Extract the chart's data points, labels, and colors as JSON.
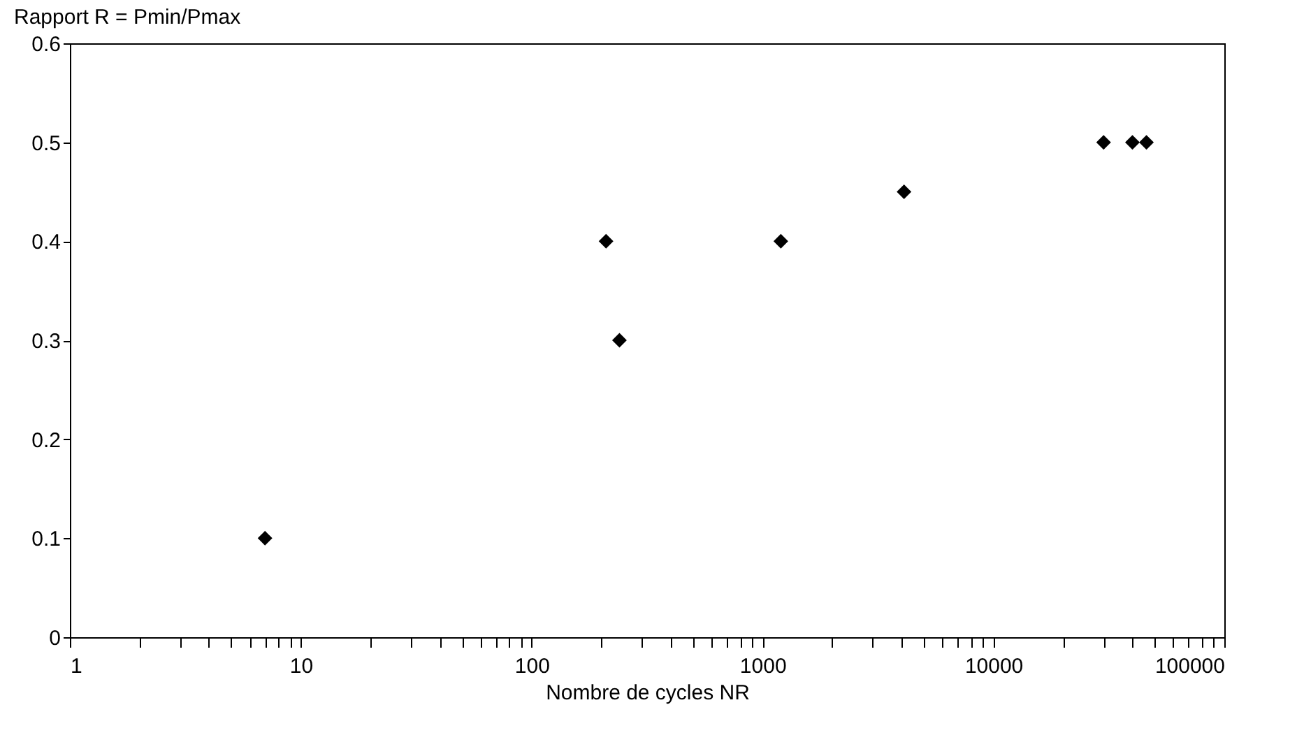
{
  "chart_data": {
    "type": "scatter",
    "ylabel": "Rapport R = Pmin/Pmax",
    "xlabel": "Nombre de cycles NR",
    "x": [
      7,
      210,
      240,
      1200,
      4100,
      30000,
      40000,
      46000
    ],
    "values": [
      0.1,
      0.4,
      0.3,
      0.4,
      0.45,
      0.5,
      0.5,
      0.5
    ],
    "color": "#000000",
    "marker": "diamond",
    "log": "x",
    "grid": false,
    "xlim": [
      1,
      100000
    ],
    "xticks": [
      1,
      {
        "value": 2,
        "label": null
      },
      {
        "value": 3,
        "label": null
      },
      {
        "value": 4,
        "label": null
      },
      {
        "value": 5,
        "label": null
      },
      {
        "value": 6,
        "label": null
      },
      {
        "value": 7,
        "label": null
      },
      {
        "value": 8,
        "label": null
      },
      {
        "value": 9,
        "label": null
      },
      10,
      {
        "value": 20,
        "label": null
      },
      {
        "value": 30,
        "label": null
      },
      {
        "value": 40,
        "label": null
      },
      {
        "value": 50,
        "label": null
      },
      {
        "value": 60,
        "label": null
      },
      {
        "value": 70,
        "label": null
      },
      {
        "value": 80,
        "label": null
      },
      {
        "value": 90,
        "label": null
      },
      100,
      {
        "value": 200,
        "label": null
      },
      {
        "value": 300,
        "label": null
      },
      {
        "value": 400,
        "label": null
      },
      {
        "value": 500,
        "label": null
      },
      {
        "value": 600,
        "label": null
      },
      {
        "value": 700,
        "label": null
      },
      {
        "value": 800,
        "label": null
      },
      {
        "value": 900,
        "label": null
      },
      1000,
      {
        "value": 2000,
        "label": null
      },
      {
        "value": 3000,
        "label": null
      },
      {
        "value": 4000,
        "label": null
      },
      {
        "value": 5000,
        "label": null
      },
      {
        "value": 6000,
        "label": null
      },
      {
        "value": 7000,
        "label": null
      },
      {
        "value": 8000,
        "label": null
      },
      {
        "value": 9000,
        "label": null
      },
      10000,
      {
        "value": 20000,
        "label": null
      },
      {
        "value": 30000,
        "label": null
      },
      {
        "value": 40000,
        "label": null
      },
      {
        "value": 50000,
        "label": null
      },
      {
        "value": 60000,
        "label": null
      },
      {
        "value": 70000,
        "label": null
      },
      {
        "value": 80000,
        "label": null
      },
      {
        "value": 90000,
        "label": null
      },
      100000
    ],
    "ylim": [
      0,
      0.6
    ],
    "yticks": [
      0,
      0.1,
      0.2,
      0.3,
      0.4,
      0.5,
      0.6
    ]
  }
}
